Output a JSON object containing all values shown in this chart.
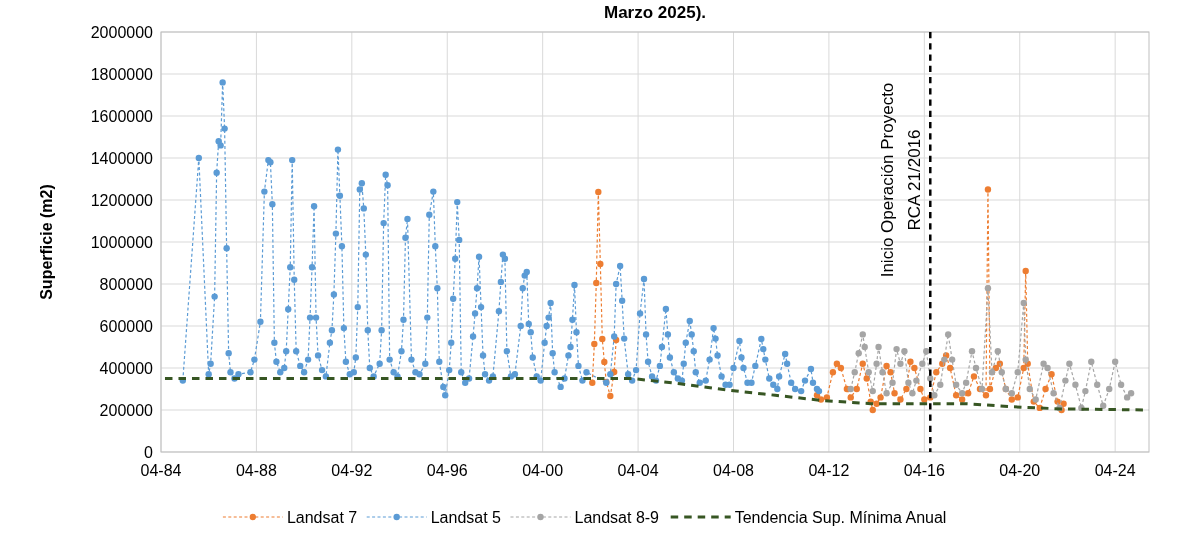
{
  "chart_data": {
    "type": "line",
    "title": "Marzo 2025).",
    "ylabel": "Superficie (m2)",
    "xlim": [
      "1984-04",
      "2025-09"
    ],
    "ylim": [
      0,
      2000000
    ],
    "xticks": [
      {
        "value": "1984-04",
        "label": "04-84"
      },
      {
        "value": "1988-04",
        "label": "04-88"
      },
      {
        "value": "1992-04",
        "label": "04-92"
      },
      {
        "value": "1996-04",
        "label": "04-96"
      },
      {
        "value": "2000-04",
        "label": "04-00"
      },
      {
        "value": "2004-04",
        "label": "04-04"
      },
      {
        "value": "2008-04",
        "label": "04-08"
      },
      {
        "value": "2012-04",
        "label": "04-12"
      },
      {
        "value": "2016-04",
        "label": "04-16"
      },
      {
        "value": "2020-04",
        "label": "04-20"
      },
      {
        "value": "2024-04",
        "label": "04-24"
      }
    ],
    "yticks": [
      0,
      200000,
      400000,
      600000,
      800000,
      1000000,
      1200000,
      1400000,
      1600000,
      1800000,
      2000000
    ],
    "grid": true,
    "legend": "bottom",
    "ref_lines": [
      {
        "axis": "x",
        "value": "2016-07",
        "label": "Inicio Operación Proyecto\nRCA 21/2016",
        "color": "#000000",
        "line_style": "dashed"
      }
    ],
    "series": [
      {
        "name": "Landsat 7",
        "color": "#ed7d31",
        "marker": "circle",
        "line_style": "dashed",
        "x": [
          "2002-05",
          "2002-06",
          "2002-07",
          "2002-08",
          "2002-09",
          "2002-10",
          "2002-11",
          "2002-12",
          "2003-02",
          "2003-04",
          "2003-05",
          "2007-01",
          "2011-10",
          "2011-12",
          "2012-03",
          "2012-06",
          "2012-08",
          "2012-10",
          "2013-01",
          "2013-03",
          "2013-06",
          "2013-09",
          "2013-11",
          "2014-01",
          "2014-02",
          "2014-04",
          "2014-06",
          "2014-09",
          "2014-11",
          "2015-01",
          "2015-04",
          "2015-07",
          "2015-09",
          "2015-11",
          "2016-02",
          "2016-04",
          "2016-07",
          "2016-10",
          "2017-01",
          "2017-03",
          "2017-05",
          "2017-08",
          "2017-11",
          "2018-02",
          "2018-05",
          "2018-08",
          "2018-11",
          "2018-12",
          "2019-01",
          "2019-04",
          "2019-06",
          "2019-09",
          "2019-12",
          "2020-03",
          "2020-06",
          "2020-07",
          "2020-08",
          "2020-11",
          "2021-02",
          "2021-05",
          "2021-08",
          "2021-11",
          "2022-01",
          "2022-02"
        ],
        "values": [
          330000,
          514000,
          805000,
          1238000,
          895000,
          538000,
          429000,
          333000,
          267000,
          381000,
          533000,
          null,
          270000,
          250000,
          260000,
          380000,
          420000,
          400000,
          300000,
          260000,
          300000,
          420000,
          350000,
          240000,
          200000,
          230000,
          260000,
          410000,
          380000,
          280000,
          250000,
          300000,
          430000,
          400000,
          300000,
          250000,
          260000,
          380000,
          420000,
          460000,
          400000,
          270000,
          250000,
          280000,
          360000,
          300000,
          270000,
          1250000,
          300000,
          400000,
          420000,
          300000,
          250000,
          260000,
          400000,
          862000,
          420000,
          240000,
          210000,
          300000,
          370000,
          240000,
          200000,
          230000
        ]
      },
      {
        "name": "Landsat 5",
        "color": "#5b9bd5",
        "marker": "circle",
        "line_style": "dashed",
        "x": [
          "1985-03",
          "1985-11",
          "1986-04",
          "1986-05",
          "1986-07",
          "1986-08",
          "1986-09",
          "1986-10",
          "1986-11",
          "1986-12",
          "1987-01",
          "1987-02",
          "1987-03",
          "1987-05",
          "1987-07",
          "1988-01",
          "1988-03",
          "1988-06",
          "1988-08",
          "1988-10",
          "1988-11",
          "1988-12",
          "1989-01",
          "1989-02",
          "1989-04",
          "1989-06",
          "1989-07",
          "1989-08",
          "1989-09",
          "1989-10",
          "1989-11",
          "1989-12",
          "1990-02",
          "1990-04",
          "1990-06",
          "1990-07",
          "1990-08",
          "1990-09",
          "1990-10",
          "1990-11",
          "1991-01",
          "1991-03",
          "1991-05",
          "1991-06",
          "1991-07",
          "1991-08",
          "1991-09",
          "1991-10",
          "1991-11",
          "1991-12",
          "1992-01",
          "1992-03",
          "1992-05",
          "1992-06",
          "1992-07",
          "1992-08",
          "1992-09",
          "1992-10",
          "1992-11",
          "1992-12",
          "1993-01",
          "1993-03",
          "1993-06",
          "1993-07",
          "1993-08",
          "1993-09",
          "1993-10",
          "1993-11",
          "1994-01",
          "1994-03",
          "1994-05",
          "1994-06",
          "1994-07",
          "1994-08",
          "1994-10",
          "1994-12",
          "1995-02",
          "1995-05",
          "1995-06",
          "1995-07",
          "1995-09",
          "1995-10",
          "1995-11",
          "1995-12",
          "1996-02",
          "1996-03",
          "1996-05",
          "1996-06",
          "1996-07",
          "1996-08",
          "1996-09",
          "1996-10",
          "1996-11",
          "1997-01",
          "1997-03",
          "1997-05",
          "1997-06",
          "1997-07",
          "1997-08",
          "1997-09",
          "1997-10",
          "1997-11",
          "1998-01",
          "1998-03",
          "1998-06",
          "1998-07",
          "1998-08",
          "1998-09",
          "1998-10",
          "1998-12",
          "1999-02",
          "1999-05",
          "1999-06",
          "1999-07",
          "1999-08",
          "1999-09",
          "1999-10",
          "1999-11",
          "2000-01",
          "2000-03",
          "2000-05",
          "2000-06",
          "2000-07",
          "2000-08",
          "2000-09",
          "2000-10",
          "2001-01",
          "2001-03",
          "2001-05",
          "2001-06",
          "2001-07",
          "2001-08",
          "2001-09",
          "2001-10",
          "2001-12",
          "2002-02",
          "2002-12",
          "2003-02",
          "2003-04",
          "2003-05",
          "2003-07",
          "2003-08",
          "2003-09",
          "2003-11",
          "2004-01",
          "2004-03",
          "2004-05",
          "2004-07",
          "2004-08",
          "2004-09",
          "2004-11",
          "2005-01",
          "2005-03",
          "2005-04",
          "2005-06",
          "2005-07",
          "2005-08",
          "2005-10",
          "2005-12",
          "2006-02",
          "2006-03",
          "2006-04",
          "2006-06",
          "2006-07",
          "2006-08",
          "2006-09",
          "2006-11",
          "2007-02",
          "2007-04",
          "2007-06",
          "2007-07",
          "2007-08",
          "2007-10",
          "2007-12",
          "2008-02",
          "2008-04",
          "2008-07",
          "2008-08",
          "2008-09",
          "2008-11",
          "2009-01",
          "2009-03",
          "2009-06",
          "2009-07",
          "2009-08",
          "2009-10",
          "2009-12",
          "2010-02",
          "2010-03",
          "2010-06",
          "2010-07",
          "2010-09",
          "2010-11",
          "2011-02",
          "2011-04",
          "2011-07",
          "2011-08",
          "2011-10",
          "2011-11"
        ],
        "values": [
          340000,
          1400000,
          370000,
          420000,
          740000,
          1330000,
          1480000,
          1460000,
          1760000,
          1540000,
          970000,
          470000,
          380000,
          350000,
          370000,
          380000,
          440000,
          620000,
          1240000,
          1390000,
          1380000,
          1180000,
          520000,
          430000,
          380000,
          400000,
          480000,
          680000,
          880000,
          1390000,
          820000,
          480000,
          410000,
          380000,
          440000,
          640000,
          880000,
          1170000,
          640000,
          460000,
          390000,
          360000,
          520000,
          580000,
          750000,
          1040000,
          1440000,
          1220000,
          980000,
          590000,
          430000,
          370000,
          380000,
          450000,
          690000,
          1250000,
          1280000,
          1160000,
          940000,
          580000,
          400000,
          360000,
          420000,
          580000,
          1090000,
          1320000,
          1270000,
          440000,
          380000,
          360000,
          480000,
          630000,
          1020000,
          1110000,
          440000,
          380000,
          370000,
          420000,
          640000,
          1130000,
          1240000,
          980000,
          780000,
          430000,
          310000,
          270000,
          390000,
          520000,
          730000,
          920000,
          1190000,
          1010000,
          380000,
          330000,
          350000,
          550000,
          660000,
          780000,
          930000,
          690000,
          460000,
          370000,
          340000,
          360000,
          670000,
          810000,
          940000,
          920000,
          480000,
          360000,
          370000,
          600000,
          780000,
          840000,
          857000,
          610000,
          570000,
          450000,
          360000,
          340000,
          520000,
          600000,
          640000,
          710000,
          470000,
          380000,
          310000,
          350000,
          460000,
          500000,
          630000,
          795000,
          570000,
          410000,
          340000,
          380000,
          330000,
          370000,
          550000,
          800000,
          886000,
          720000,
          540000,
          370000,
          340000,
          390000,
          660000,
          824000,
          560000,
          430000,
          360000,
          340000,
          410000,
          500000,
          681000,
          560000,
          450000,
          380000,
          350000,
          340000,
          420000,
          520000,
          624000,
          560000,
          480000,
          380000,
          330000,
          340000,
          440000,
          590000,
          540000,
          460000,
          360000,
          320000,
          320000,
          400000,
          529000,
          450000,
          400000,
          330000,
          330000,
          410000,
          538000,
          490000,
          440000,
          350000,
          320000,
          300000,
          360000,
          467000,
          420000,
          330000,
          300000,
          290000,
          340000,
          395000,
          330000,
          300000,
          290000
        ]
      },
      {
        "name": "Landsat 8-9",
        "color": "#a5a5a5",
        "marker": "circle",
        "line_style": "dashed",
        "x": [
          "2013-03",
          "2013-05",
          "2013-07",
          "2013-09",
          "2013-10",
          "2013-12",
          "2014-02",
          "2014-04",
          "2014-05",
          "2014-07",
          "2014-09",
          "2014-12",
          "2015-02",
          "2015-04",
          "2015-06",
          "2015-08",
          "2015-10",
          "2015-12",
          "2016-03",
          "2016-05",
          "2016-07",
          "2016-09",
          "2016-12",
          "2017-02",
          "2017-04",
          "2017-06",
          "2017-08",
          "2017-11",
          "2018-01",
          "2018-04",
          "2018-06",
          "2018-09",
          "2018-12",
          "2019-02",
          "2019-05",
          "2019-07",
          "2019-09",
          "2019-12",
          "2020-03",
          "2020-06",
          "2020-07",
          "2020-09",
          "2020-12",
          "2021-04",
          "2021-06",
          "2021-09",
          "2021-12",
          "2022-03",
          "2022-05",
          "2022-08",
          "2022-11",
          "2023-01",
          "2023-04",
          "2023-07",
          "2023-10",
          "2024-01",
          "2024-04",
          "2024-07",
          "2024-10",
          "2024-12"
        ],
        "values": [
          300000,
          380000,
          470000,
          560000,
          500000,
          380000,
          290000,
          420000,
          500000,
          380000,
          280000,
          330000,
          490000,
          420000,
          480000,
          330000,
          280000,
          340000,
          420000,
          480000,
          350000,
          270000,
          320000,
          440000,
          560000,
          440000,
          320000,
          280000,
          330000,
          480000,
          400000,
          300000,
          780000,
          380000,
          480000,
          380000,
          300000,
          280000,
          380000,
          710000,
          440000,
          300000,
          250000,
          420000,
          400000,
          280000,
          210000,
          340000,
          420000,
          320000,
          210000,
          290000,
          430000,
          320000,
          220000,
          300000,
          430000,
          320000,
          260000,
          280000
        ]
      },
      {
        "name": "Tendencia Sup. Mínima Anual",
        "color": "#375623",
        "marker": "none",
        "line_style": "dashed",
        "x": [
          "1984-06",
          "2004-01",
          "2006-01",
          "2008-01",
          "2010-01",
          "2012-01",
          "2014-01",
          "2016-01",
          "2018-01",
          "2020-01",
          "2022-01",
          "2025-09"
        ],
        "values": [
          350000,
          350000,
          325000,
          295000,
          270000,
          245000,
          230000,
          230000,
          230000,
          215000,
          205000,
          200000
        ]
      }
    ]
  }
}
